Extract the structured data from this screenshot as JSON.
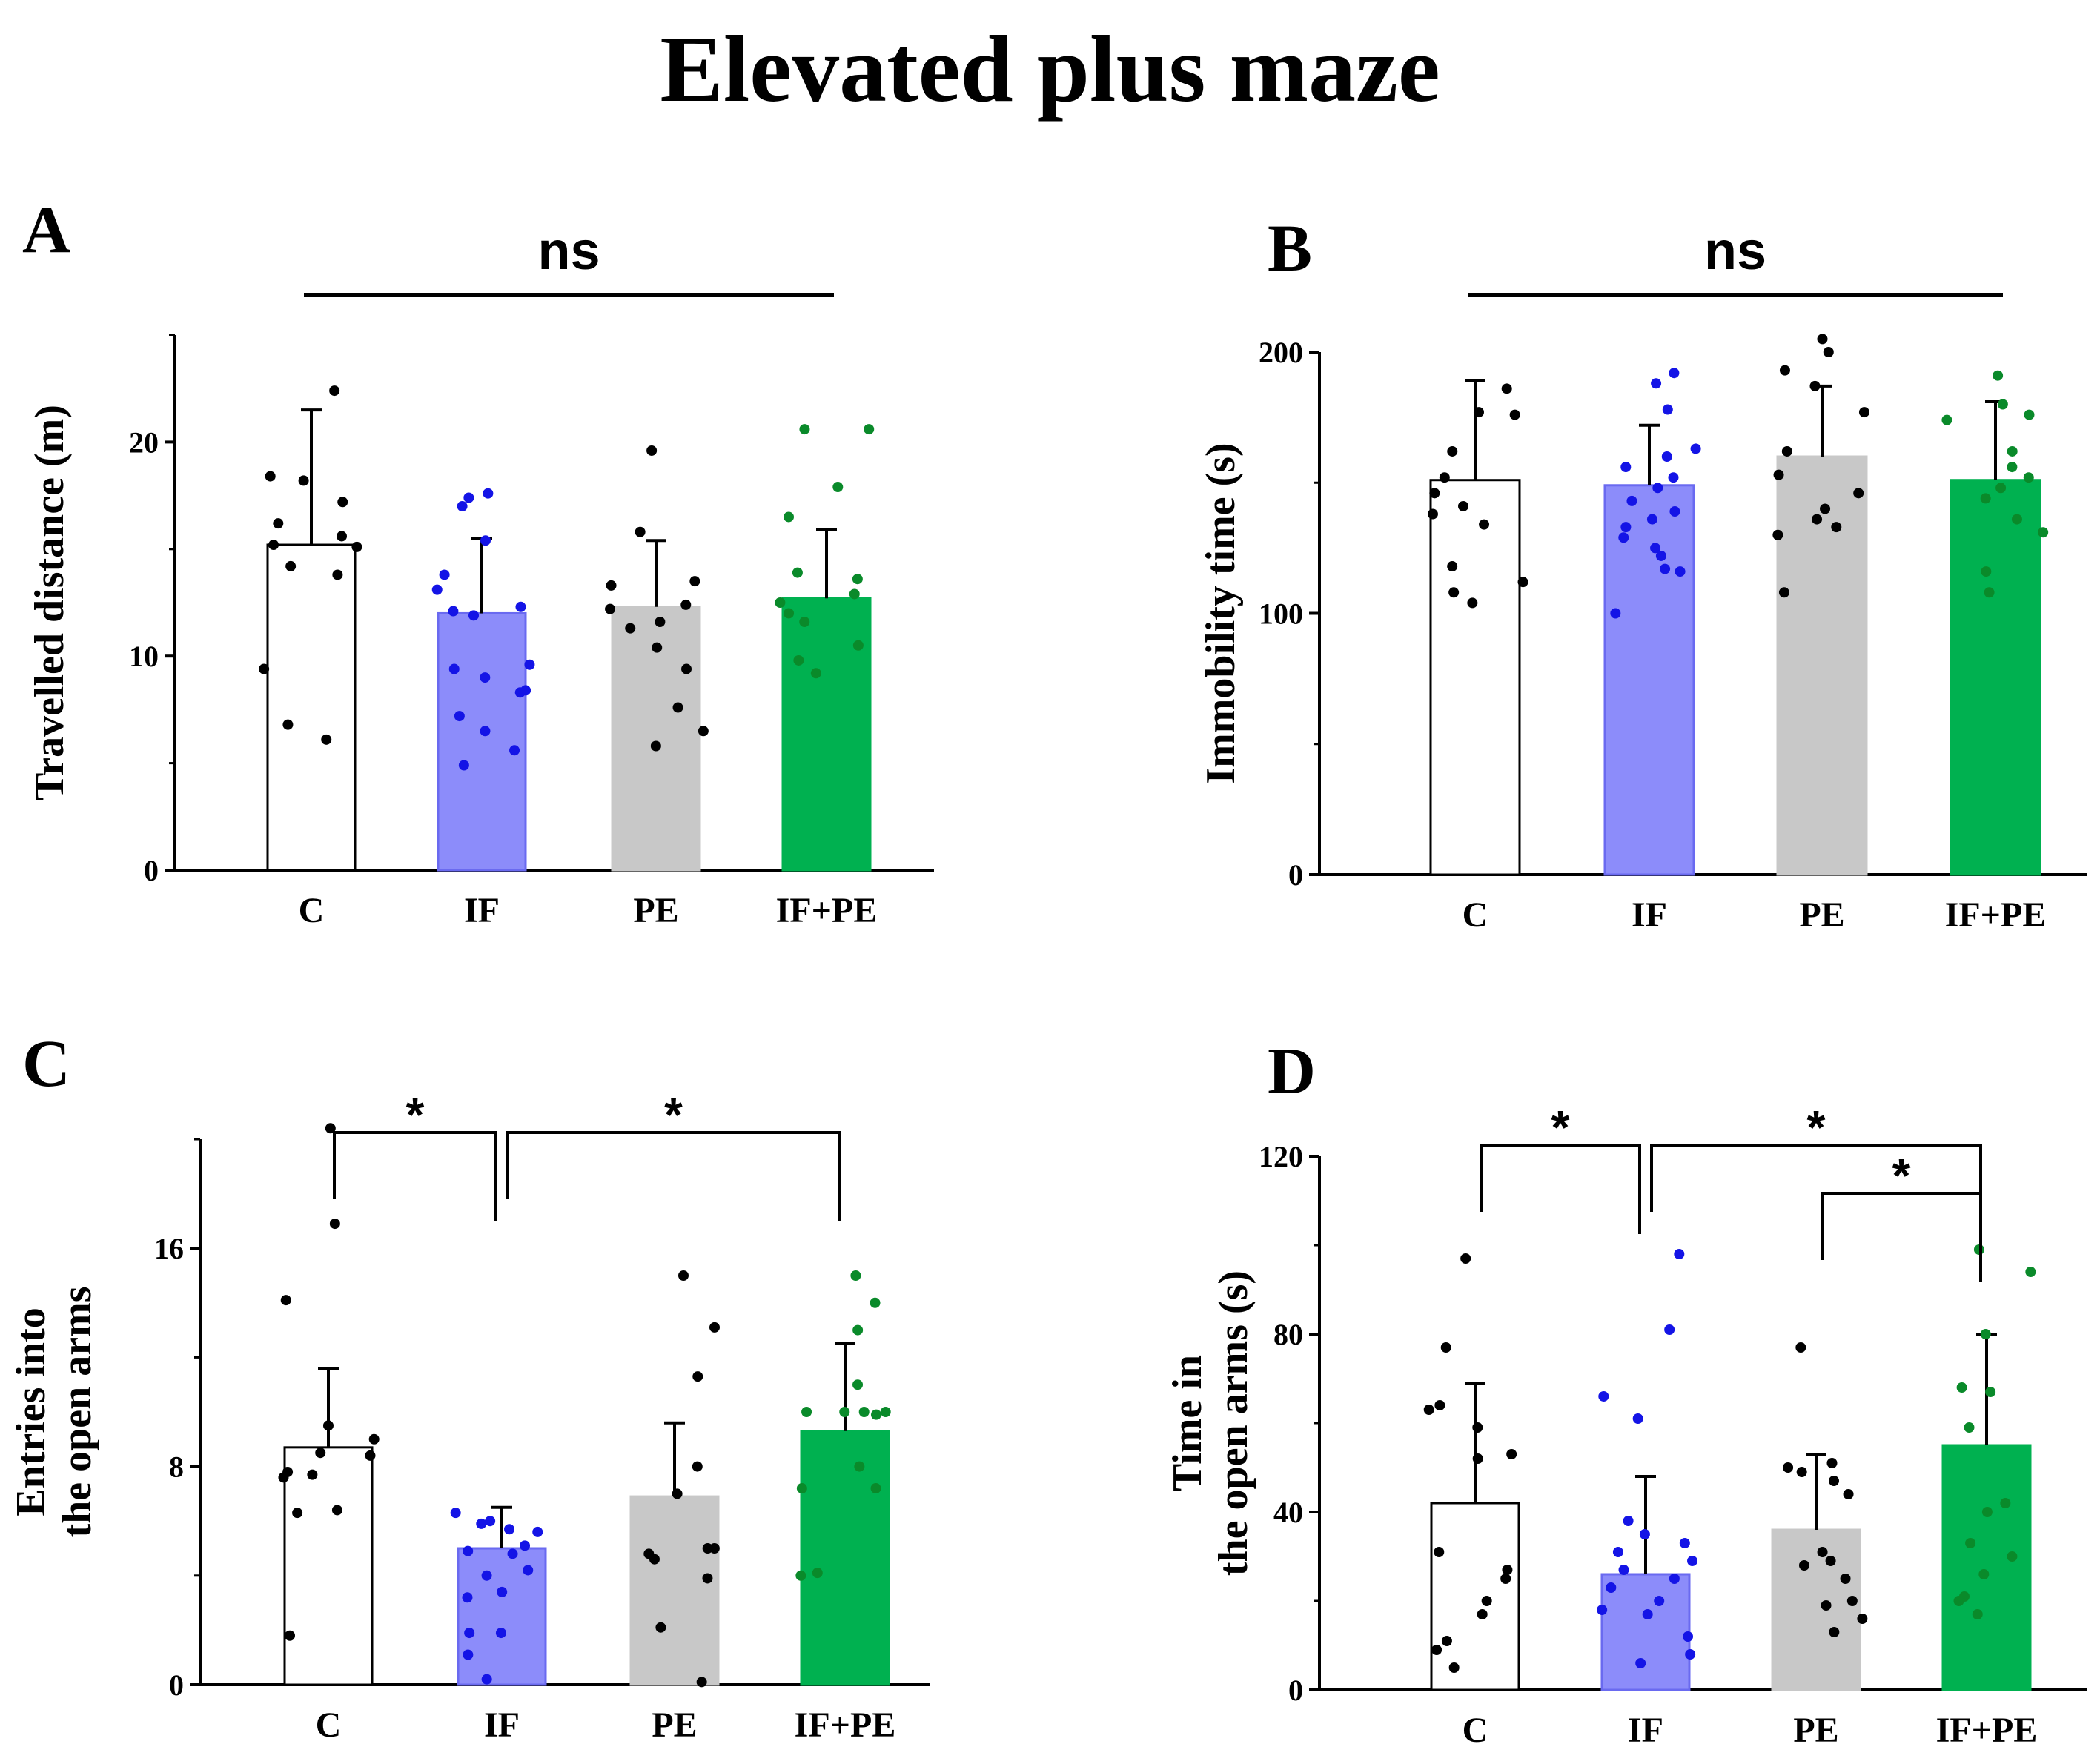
{
  "title": "Elevated plus maze",
  "colors": {
    "C": "#ffffff",
    "IF": "#8c8cfa",
    "PE": "#c8c8c8",
    "IF+PE": "#00b150",
    "dot_C": "#000000",
    "dot_IF": "#1414e6",
    "dot_PE": "#000000",
    "dot_IFPE": "#0a8a2a",
    "axis": "#000000"
  },
  "chart_data": [
    {
      "panel": "A",
      "type": "bar",
      "ylabel": "Travelled distance (m)",
      "categories": [
        "C",
        "IF",
        "PE",
        "IF+PE"
      ],
      "values": [
        15.2,
        12.0,
        12.3,
        12.7
      ],
      "errors": [
        6.3,
        3.5,
        3.1,
        3.2
      ],
      "ylim": [
        0,
        25
      ],
      "yticks": [
        0,
        10,
        20
      ],
      "ytick_labels": [
        "0",
        "10",
        "20"
      ],
      "points": [
        [
          22.4,
          18.4,
          18.2,
          17.2,
          16.2,
          15.6,
          15.2,
          15.1,
          14.2,
          13.8,
          9.4,
          6.8,
          6.1
        ],
        [
          17.6,
          17.4,
          17.0,
          15.4,
          13.8,
          13.1,
          12.3,
          12.1,
          11.9,
          9.6,
          9.4,
          9.0,
          8.4,
          8.3,
          7.2,
          6.5,
          5.6,
          4.9
        ],
        [
          19.6,
          15.8,
          13.5,
          13.3,
          12.4,
          12.2,
          11.6,
          11.3,
          10.4,
          9.4,
          7.6,
          6.5,
          5.8
        ],
        [
          20.6,
          20.6,
          17.9,
          16.5,
          13.9,
          13.6,
          12.9,
          12.5,
          12.0,
          11.6,
          10.5,
          9.8,
          9.2
        ]
      ],
      "significance": [
        {
          "from": 0,
          "to": 3,
          "label": "ns",
          "style": "line"
        }
      ]
    },
    {
      "panel": "B",
      "type": "bar",
      "ylabel": "Immobility time (s)",
      "categories": [
        "C",
        "IF",
        "PE",
        "IF+PE"
      ],
      "values": [
        151,
        149,
        160,
        151
      ],
      "errors": [
        38,
        23,
        27,
        30
      ],
      "ylim": [
        0,
        200
      ],
      "yticks": [
        0,
        100,
        200
      ],
      "ytick_labels": [
        "0",
        "100",
        "200"
      ],
      "points": [
        [
          186,
          177,
          176,
          162,
          152,
          146,
          141,
          138,
          134,
          118,
          112,
          108,
          104
        ],
        [
          192,
          188,
          178,
          163,
          160,
          156,
          152,
          148,
          143,
          139,
          136,
          133,
          129,
          125,
          122,
          117,
          116,
          100
        ],
        [
          205,
          200,
          193,
          187,
          177,
          162,
          153,
          146,
          140,
          136,
          133,
          130,
          108
        ],
        [
          191,
          180,
          176,
          174,
          162,
          156,
          152,
          148,
          144,
          136,
          131,
          116,
          108
        ]
      ],
      "significance": [
        {
          "from": 0,
          "to": 3,
          "label": "ns",
          "style": "line"
        }
      ]
    },
    {
      "panel": "C",
      "type": "bar",
      "ylabel": "Entries into\nthe open arms",
      "categories": [
        "C",
        "IF",
        "PE",
        "IF+PE"
      ],
      "values": [
        8.7,
        5.0,
        6.9,
        9.3
      ],
      "errors": [
        2.9,
        1.5,
        2.7,
        3.2
      ],
      "ylim": [
        0,
        20
      ],
      "yticks": [
        0,
        8,
        16
      ],
      "ytick_labels": [
        "0",
        "8",
        "16"
      ],
      "points": [
        [
          20.4,
          16.9,
          14.1,
          9.5,
          9.0,
          8.5,
          8.4,
          7.8,
          7.7,
          7.6,
          6.4,
          6.3,
          1.8
        ],
        [
          6.3,
          6.0,
          5.9,
          5.7,
          5.6,
          5.1,
          4.9,
          4.8,
          4.2,
          4.0,
          3.4,
          3.2,
          1.9,
          1.9,
          1.1,
          0.2
        ],
        [
          15.0,
          13.1,
          11.3,
          8.0,
          7.0,
          5.0,
          5.0,
          4.8,
          4.6,
          3.9,
          2.1,
          0.1
        ],
        [
          15.0,
          14.0,
          13.0,
          11.0,
          10.0,
          10.0,
          10.0,
          10.0,
          9.9,
          8.0,
          7.2,
          7.2,
          4.1,
          4.0
        ]
      ],
      "significance": [
        {
          "from": 0,
          "to": 1,
          "label": "*",
          "style": "bracket"
        },
        {
          "from": 1,
          "to": 3,
          "label": "*",
          "style": "bracket"
        }
      ]
    },
    {
      "panel": "D",
      "type": "bar",
      "ylabel": "Time in\nthe open arms (s)",
      "categories": [
        "C",
        "IF",
        "PE",
        "IF+PE"
      ],
      "values": [
        42,
        26,
        36,
        55
      ],
      "errors": [
        27,
        22,
        17,
        25
      ],
      "ylim": [
        0,
        120
      ],
      "yticks": [
        0,
        40,
        80,
        120
      ],
      "ytick_labels": [
        "0",
        "40",
        "80",
        "120"
      ],
      "points": [
        [
          97,
          77,
          64,
          63,
          59,
          53,
          52,
          31,
          27,
          25,
          20,
          17,
          11,
          9,
          5
        ],
        [
          98,
          81,
          66,
          61,
          38,
          35,
          33,
          31,
          29,
          27,
          25,
          23,
          20,
          18,
          17,
          12,
          8,
          6
        ],
        [
          77,
          51,
          50,
          49,
          47,
          44,
          31,
          29,
          28,
          25,
          20,
          19,
          16,
          13
        ],
        [
          99,
          94,
          80,
          68,
          67,
          59,
          42,
          40,
          33,
          30,
          26,
          21,
          20,
          17
        ]
      ],
      "significance": [
        {
          "from": 0,
          "to": 1,
          "label": "*",
          "style": "bracket"
        },
        {
          "from": 1,
          "to": 3,
          "label": "*",
          "style": "bracket"
        },
        {
          "from": 2,
          "to": 3,
          "label": "*",
          "style": "bracket"
        }
      ]
    }
  ]
}
